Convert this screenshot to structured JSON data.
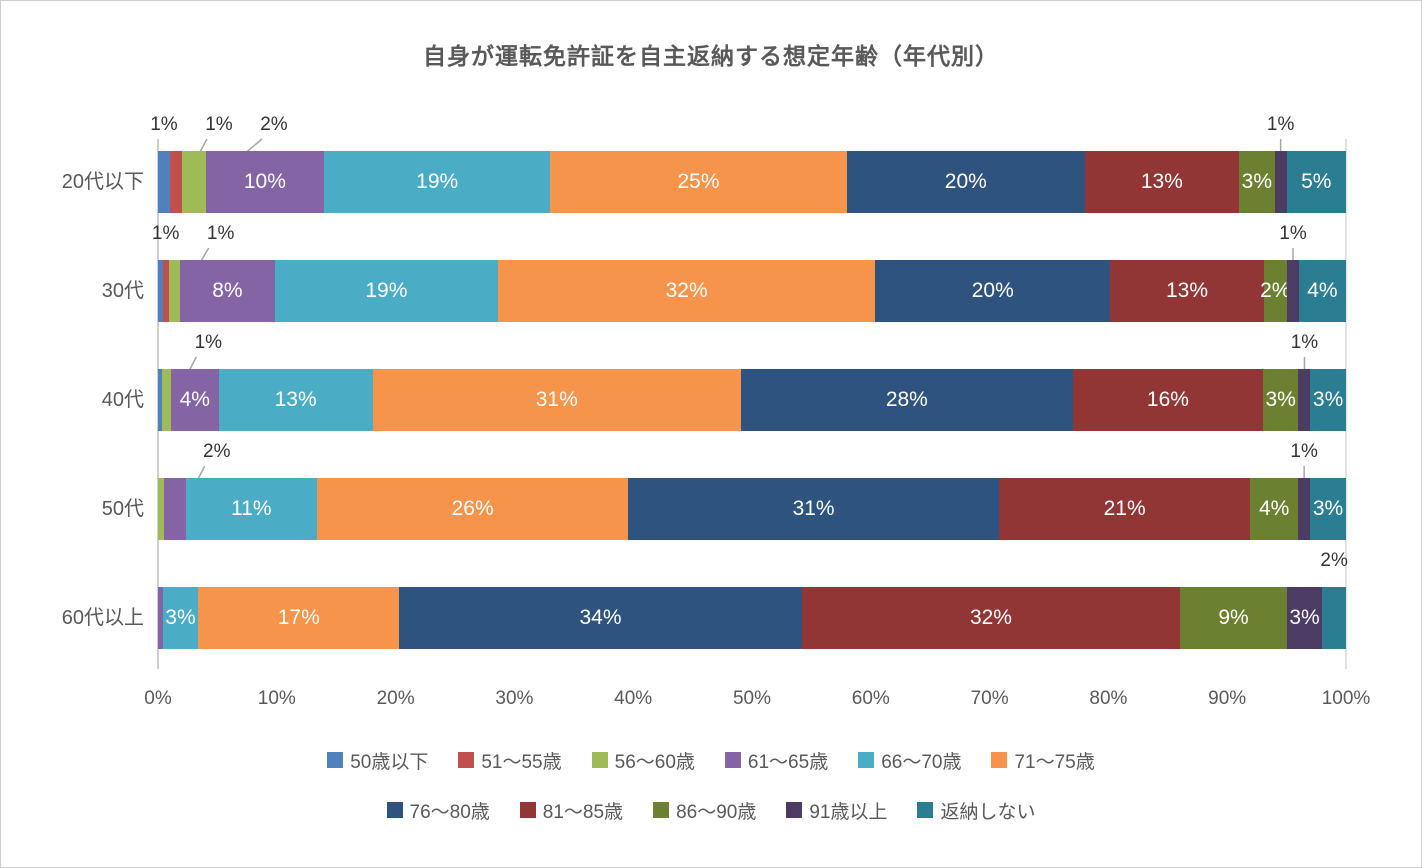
{
  "title": "自身が運転免許証を自主返納する想定年齢（年代別）",
  "series": [
    {
      "name": "50歳以下",
      "color": "#4F81BD"
    },
    {
      "name": "51〜55歳",
      "color": "#C0504D"
    },
    {
      "name": "56〜60歳",
      "color": "#9FBB58"
    },
    {
      "name": "61〜65歳",
      "color": "#8464A5"
    },
    {
      "name": "66〜70歳",
      "color": "#4BACC6"
    },
    {
      "name": "71〜75歳",
      "color": "#F5944A"
    },
    {
      "name": "76〜80歳",
      "color": "#2E537F"
    },
    {
      "name": "81〜85歳",
      "color": "#913634"
    },
    {
      "name": "86〜90歳",
      "color": "#6C8032"
    },
    {
      "name": "91歳以上",
      "color": "#4C3C63"
    },
    {
      "name": "返納しない",
      "color": "#2B7D92"
    }
  ],
  "categories": [
    "20代以下",
    "30代",
    "40代",
    "50代",
    "60代以上"
  ],
  "rows": [
    {
      "category": "20代以下",
      "segments": [
        {
          "series": 0,
          "value": 1,
          "label": "1%",
          "label_pos": "above"
        },
        {
          "series": 1,
          "value": 1,
          "label": "1%",
          "label_pos": "above"
        },
        {
          "series": 2,
          "value": 2,
          "label": "2%",
          "label_pos": "above"
        },
        {
          "series": 3,
          "value": 10,
          "label": "10%",
          "label_pos": "inside"
        },
        {
          "series": 4,
          "value": 19,
          "label": "19%",
          "label_pos": "inside"
        },
        {
          "series": 5,
          "value": 25,
          "label": "25%",
          "label_pos": "inside"
        },
        {
          "series": 6,
          "value": 20,
          "label": "20%",
          "label_pos": "inside"
        },
        {
          "series": 7,
          "value": 13,
          "label": "13%",
          "label_pos": "inside"
        },
        {
          "series": 8,
          "value": 3,
          "label": "3%",
          "label_pos": "inside"
        },
        {
          "series": 9,
          "value": 1,
          "label": "1%",
          "label_pos": "above"
        },
        {
          "series": 10,
          "value": 5,
          "label": "5%",
          "label_pos": "inside"
        }
      ]
    },
    {
      "category": "30代",
      "segments": [
        {
          "series": 0,
          "value": 0.4
        },
        {
          "series": 1,
          "value": 0.5,
          "label": "1%",
          "label_pos": "above"
        },
        {
          "series": 2,
          "value": 1,
          "label": "1%",
          "label_pos": "above"
        },
        {
          "series": 3,
          "value": 8,
          "label": "8%",
          "label_pos": "inside"
        },
        {
          "series": 4,
          "value": 19,
          "label": "19%",
          "label_pos": "inside"
        },
        {
          "series": 5,
          "value": 32,
          "label": "32%",
          "label_pos": "inside"
        },
        {
          "series": 6,
          "value": 20,
          "label": "20%",
          "label_pos": "inside"
        },
        {
          "series": 7,
          "value": 13,
          "label": "13%",
          "label_pos": "inside"
        },
        {
          "series": 8,
          "value": 2,
          "label": "2%",
          "label_pos": "inside"
        },
        {
          "series": 9,
          "value": 1,
          "label": "1%",
          "label_pos": "above"
        },
        {
          "series": 10,
          "value": 4,
          "label": "4%",
          "label_pos": "inside"
        }
      ]
    },
    {
      "category": "40代",
      "segments": [
        {
          "series": 0,
          "value": 0.3
        },
        {
          "series": 2,
          "value": 0.8,
          "label": "1%",
          "label_pos": "above"
        },
        {
          "series": 3,
          "value": 4,
          "label": "4%",
          "label_pos": "inside"
        },
        {
          "series": 4,
          "value": 13,
          "label": "13%",
          "label_pos": "inside"
        },
        {
          "series": 5,
          "value": 31,
          "label": "31%",
          "label_pos": "inside"
        },
        {
          "series": 6,
          "value": 28,
          "label": "28%",
          "label_pos": "inside"
        },
        {
          "series": 7,
          "value": 16,
          "label": "16%",
          "label_pos": "inside"
        },
        {
          "series": 8,
          "value": 3,
          "label": "3%",
          "label_pos": "inside"
        },
        {
          "series": 9,
          "value": 1,
          "label": "1%",
          "label_pos": "above"
        },
        {
          "series": 10,
          "value": 3,
          "label": "3%",
          "label_pos": "inside"
        }
      ]
    },
    {
      "category": "50代",
      "segments": [
        {
          "series": 2,
          "value": 0.5
        },
        {
          "series": 3,
          "value": 1.8,
          "label": "2%",
          "label_pos": "above"
        },
        {
          "series": 4,
          "value": 11,
          "label": "11%",
          "label_pos": "inside"
        },
        {
          "series": 5,
          "value": 26,
          "label": "26%",
          "label_pos": "inside"
        },
        {
          "series": 6,
          "value": 31,
          "label": "31%",
          "label_pos": "inside"
        },
        {
          "series": 7,
          "value": 21,
          "label": "21%",
          "label_pos": "inside"
        },
        {
          "series": 8,
          "value": 4,
          "label": "4%",
          "label_pos": "inside"
        },
        {
          "series": 9,
          "value": 1,
          "label": "1%",
          "label_pos": "above"
        },
        {
          "series": 10,
          "value": 3,
          "label": "3%",
          "label_pos": "inside"
        }
      ]
    },
    {
      "category": "60代以上",
      "segments": [
        {
          "series": 3,
          "value": 0.4
        },
        {
          "series": 4,
          "value": 3,
          "label": "3%",
          "label_pos": "inside"
        },
        {
          "series": 5,
          "value": 17,
          "label": "17%",
          "label_pos": "inside"
        },
        {
          "series": 6,
          "value": 34,
          "label": "34%",
          "label_pos": "inside"
        },
        {
          "series": 7,
          "value": 32,
          "label": "32%",
          "label_pos": "inside"
        },
        {
          "series": 8,
          "value": 9,
          "label": "9%",
          "label_pos": "inside"
        },
        {
          "series": 9,
          "value": 3,
          "label": "3%",
          "label_pos": "inside"
        },
        {
          "series": 10,
          "value": 2,
          "label": "2%",
          "label_pos": "above"
        }
      ]
    }
  ],
  "x_axis": {
    "ticks": [
      "0%",
      "10%",
      "20%",
      "30%",
      "40%",
      "50%",
      "60%",
      "70%",
      "80%",
      "90%",
      "100%"
    ]
  },
  "chart_data": {
    "type": "bar",
    "subtype": "horizontal_stacked_100pct",
    "title": "自身が運転免許証を自主返納する想定年齢（年代別）",
    "categories": [
      "20代以下",
      "30代",
      "40代",
      "50代",
      "60代以上"
    ],
    "series": [
      {
        "name": "50歳以下",
        "values": [
          1,
          0.4,
          0.3,
          0,
          0
        ]
      },
      {
        "name": "51〜55歳",
        "values": [
          1,
          0.5,
          0,
          0,
          0
        ]
      },
      {
        "name": "56〜60歳",
        "values": [
          2,
          1,
          0.8,
          0.5,
          0
        ]
      },
      {
        "name": "61〜65歳",
        "values": [
          10,
          8,
          4,
          1.8,
          0.4
        ]
      },
      {
        "name": "66〜70歳",
        "values": [
          19,
          19,
          13,
          11,
          3
        ]
      },
      {
        "name": "71〜75歳",
        "values": [
          25,
          32,
          31,
          26,
          17
        ]
      },
      {
        "name": "76〜80歳",
        "values": [
          20,
          20,
          28,
          31,
          34
        ]
      },
      {
        "name": "81〜85歳",
        "values": [
          13,
          13,
          16,
          21,
          32
        ]
      },
      {
        "name": "86〜90歳",
        "values": [
          3,
          2,
          3,
          4,
          9
        ]
      },
      {
        "name": "91歳以上",
        "values": [
          1,
          1,
          1,
          1,
          3
        ]
      },
      {
        "name": "返納しない",
        "values": [
          5,
          4,
          3,
          3,
          2
        ]
      }
    ],
    "value_unit": "%",
    "x_axis_ticks": [
      "0%",
      "10%",
      "20%",
      "30%",
      "40%",
      "50%",
      "60%",
      "70%",
      "80%",
      "90%",
      "100%"
    ],
    "x_range": [
      0,
      100
    ],
    "grid": false,
    "legend_position": "bottom",
    "data_labels": "shown, thin segments called out above bars with leader lines"
  }
}
